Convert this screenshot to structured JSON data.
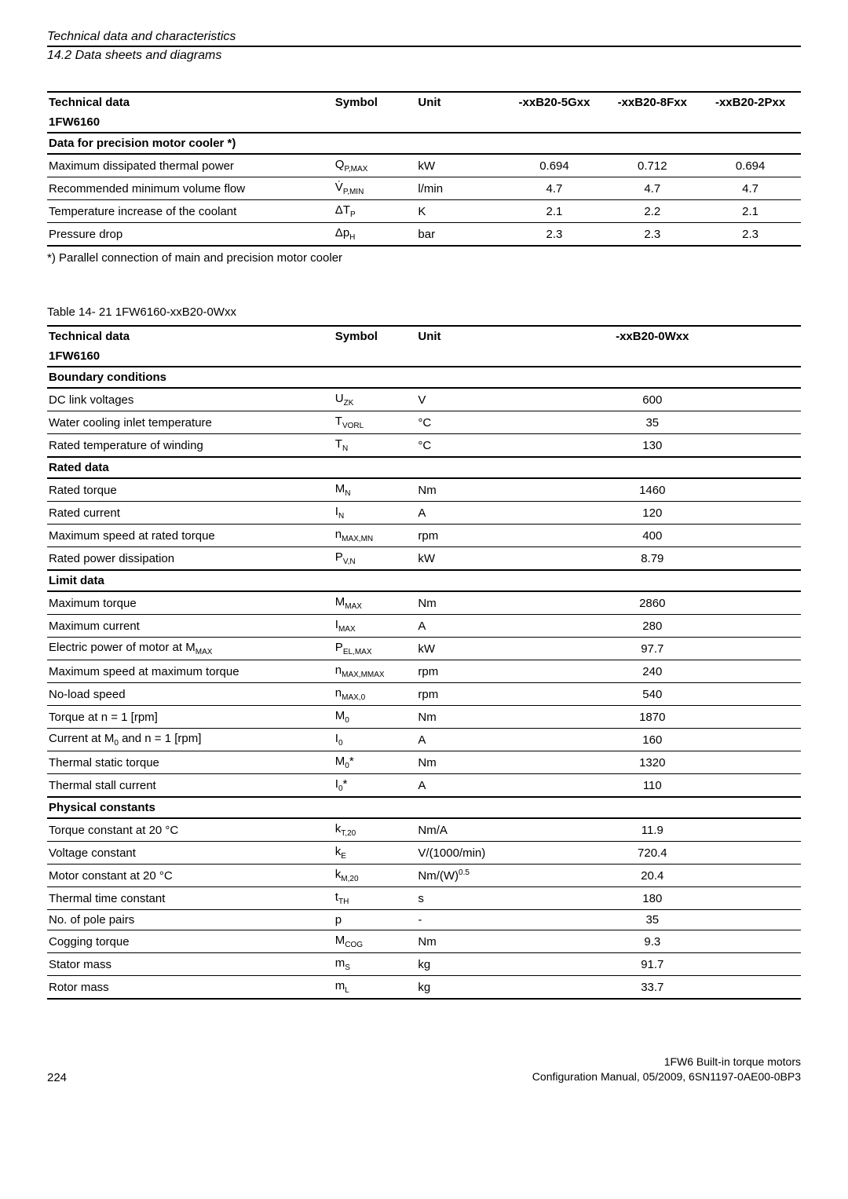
{
  "header": {
    "title": "Technical data and characteristics",
    "subtitle": "14.2 Data sheets and diagrams"
  },
  "table1": {
    "head": {
      "c1a": "Technical data",
      "c1b": "1FW6160",
      "c2": "Symbol",
      "c3": "Unit",
      "c4": "-xxB20-5Gxx",
      "c5": "-xxB20-8Fxx",
      "c6": "-xxB20-2Pxx"
    },
    "section": "Data for precision motor cooler *)",
    "rows": [
      {
        "label": "Maximum dissipated thermal power",
        "sym_pre": "Q",
        "sym_sub": "P,MAX",
        "unit": "kW",
        "v1": "0.694",
        "v2": "0.712",
        "v3": "0.694"
      },
      {
        "label": "Recommended minimum volume flow",
        "sym_pre": "V̇",
        "sym_sub": "P,MIN",
        "unit": "l/min",
        "v1": "4.7",
        "v2": "4.7",
        "v3": "4.7"
      },
      {
        "label": "Temperature increase of the coolant",
        "sym_pre": "ΔT",
        "sym_sub": "P",
        "unit": "K",
        "v1": "2.1",
        "v2": "2.2",
        "v3": "2.1"
      },
      {
        "label": "Pressure drop",
        "sym_pre": "Δp",
        "sym_sub": "H",
        "unit": "bar",
        "v1": "2.3",
        "v2": "2.3",
        "v3": "2.3"
      }
    ],
    "footnote": "*) Parallel connection of main and precision motor cooler"
  },
  "table2": {
    "caption": "Table 14- 21   1FW6160-xxB20-0Wxx",
    "head": {
      "c1a": "Technical data",
      "c1b": "1FW6160",
      "c2": "Symbol",
      "c3": "Unit",
      "c4": "-xxB20-0Wxx"
    },
    "sections": {
      "s1": "Boundary conditions",
      "s2": "Rated data",
      "s3": "Limit data",
      "s4": "Physical constants"
    },
    "r": {
      "dc": {
        "label": "DC link voltages",
        "sym": "U<sub>ZK</sub>",
        "unit": "V",
        "val": "600"
      },
      "wct": {
        "label": "Water cooling inlet temperature",
        "sym": "T<sub>VORL</sub>",
        "unit": "°C",
        "val": "35"
      },
      "rtw": {
        "label": "Rated temperature of winding",
        "sym": "T<sub>N</sub>",
        "unit": "°C",
        "val": "130"
      },
      "rt": {
        "label": "Rated torque",
        "sym": "M<sub>N</sub>",
        "unit": "Nm",
        "val": "1460"
      },
      "rc": {
        "label": "Rated current",
        "sym": "I<sub>N</sub>",
        "unit": "A",
        "val": "120"
      },
      "msrt": {
        "label": "Maximum speed at rated torque",
        "sym": "n<sub>MAX,MN</sub>",
        "unit": "rpm",
        "val": "400"
      },
      "rpd": {
        "label": "Rated power dissipation",
        "sym": "P<sub>V,N</sub>",
        "unit": "kW",
        "val": "8.79"
      },
      "mt": {
        "label": "Maximum torque",
        "sym": "M<sub>MAX</sub>",
        "unit": "Nm",
        "val": "2860"
      },
      "mc": {
        "label": "Maximum current",
        "sym": "I<sub>MAX</sub>",
        "unit": "A",
        "val": "280"
      },
      "epm": {
        "label_html": "Electric power of motor at M<sub>MAX</sub>",
        "sym": "P<sub>EL,MAX</sub>",
        "unit": "kW",
        "val": "97.7"
      },
      "msmt": {
        "label": "Maximum speed at maximum torque",
        "sym": "n<sub>MAX,MMAX</sub>",
        "unit": "rpm",
        "val": "240"
      },
      "nls": {
        "label": "No-load speed",
        "sym": "n<sub>MAX,0</sub>",
        "unit": "rpm",
        "val": "540"
      },
      "tn1": {
        "label": "Torque at n = 1 [rpm]",
        "sym": "M<sub>0</sub>",
        "unit": "Nm",
        "val": "1870"
      },
      "cn1": {
        "label_html": "Current at M<sub>0</sub> and n = 1 [rpm]",
        "sym": "I<sub>0</sub>",
        "unit": "A",
        "val": "160"
      },
      "tst": {
        "label": "Thermal static torque",
        "sym": "M<sub>0</sub>*",
        "unit": "Nm",
        "val": "1320"
      },
      "tsc": {
        "label": "Thermal stall current",
        "sym": "I<sub>0</sub>*",
        "unit": "A",
        "val": "110"
      },
      "tc20": {
        "label": "Torque constant at 20 °C",
        "sym": "k<sub>T,20</sub>",
        "unit": "Nm/A",
        "val": "11.9"
      },
      "vc": {
        "label": "Voltage constant",
        "sym": "k<sub>E</sub>",
        "unit": "V/(1000/min)",
        "val": "720.4"
      },
      "mc20": {
        "label": "Motor constant at 20 °C",
        "sym": "k<sub>M,20</sub>",
        "unit_html": "Nm/(W)<sup>0.5</sup>",
        "val": "20.4"
      },
      "ttc": {
        "label": "Thermal time constant",
        "sym": "t<sub>TH</sub>",
        "unit": "s",
        "val": "180"
      },
      "npp": {
        "label": "No. of pole pairs",
        "sym": "p",
        "unit": "-",
        "val": "35"
      },
      "cog": {
        "label": "Cogging torque",
        "sym": "M<sub>COG</sub>",
        "unit": "Nm",
        "val": "9.3"
      },
      "sm": {
        "label": "Stator mass",
        "sym": "m<sub>S</sub>",
        "unit": "kg",
        "val": "91.7"
      },
      "rm": {
        "label": "Rotor mass",
        "sym": "m<sub>L</sub>",
        "unit": "kg",
        "val": "33.7"
      }
    }
  },
  "footer": {
    "page": "224",
    "line1": "1FW6 Built-in torque motors",
    "line2": "Configuration Manual, 05/2009, 6SN1197-0AE00-0BP3"
  }
}
